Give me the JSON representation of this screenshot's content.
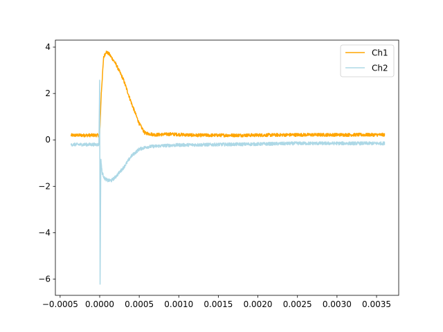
{
  "chart_data": {
    "type": "line",
    "title": "",
    "xlabel": "",
    "ylabel": "",
    "xlim": [
      -0.00056,
      0.00378
    ],
    "ylim": [
      -6.7,
      4.3
    ],
    "grid": false,
    "legend_position": "top-right",
    "x_ticks": [
      -0.0005,
      0.0,
      0.0005,
      0.001,
      0.0015,
      0.002,
      0.0025,
      0.003,
      0.0035
    ],
    "x_tick_labels": [
      "−0.0005",
      "0.0000",
      "0.0005",
      "0.0010",
      "0.0015",
      "0.0020",
      "0.0025",
      "0.0030",
      "0.0035"
    ],
    "y_ticks": [
      -6,
      -4,
      -2,
      0,
      2,
      4
    ],
    "y_tick_labels": [
      "−6",
      "−4",
      "−2",
      "0",
      "2",
      "4"
    ],
    "series": [
      {
        "name": "Ch1",
        "color": "#ffa500",
        "noise": 0.07,
        "x": [
          -0.00036,
          -0.0002,
          -1e-05,
          0.0,
          2e-05,
          5e-05,
          8e-05,
          0.00012,
          0.0002,
          0.0003,
          0.0004,
          0.0005,
          0.00057,
          0.0007,
          0.0009,
          0.0012,
          0.0018,
          0.0025,
          0.003,
          0.0036
        ],
        "y": [
          0.2,
          0.2,
          0.2,
          0.25,
          2.0,
          3.55,
          3.8,
          3.7,
          3.3,
          2.6,
          1.6,
          0.7,
          0.3,
          0.22,
          0.25,
          0.2,
          0.2,
          0.22,
          0.22,
          0.22
        ]
      },
      {
        "name": "Ch2",
        "color": "#add8e6",
        "noise": 0.07,
        "x": [
          -0.00036,
          -0.0002,
          -1e-05,
          0.0,
          5e-06,
          1.5e-05,
          3e-05,
          6e-05,
          0.0001,
          0.00015,
          0.0002,
          0.0003,
          0.0004,
          0.0005,
          0.0006,
          0.0008,
          0.001,
          0.0015,
          0.002,
          0.0025,
          0.003,
          0.0036
        ],
        "y": [
          -0.2,
          -0.2,
          -0.2,
          2.6,
          -6.2,
          -0.8,
          -1.4,
          -1.65,
          -1.75,
          -1.75,
          -1.6,
          -1.2,
          -0.7,
          -0.4,
          -0.3,
          -0.25,
          -0.22,
          -0.2,
          -0.18,
          -0.15,
          -0.15,
          -0.15
        ]
      }
    ]
  }
}
